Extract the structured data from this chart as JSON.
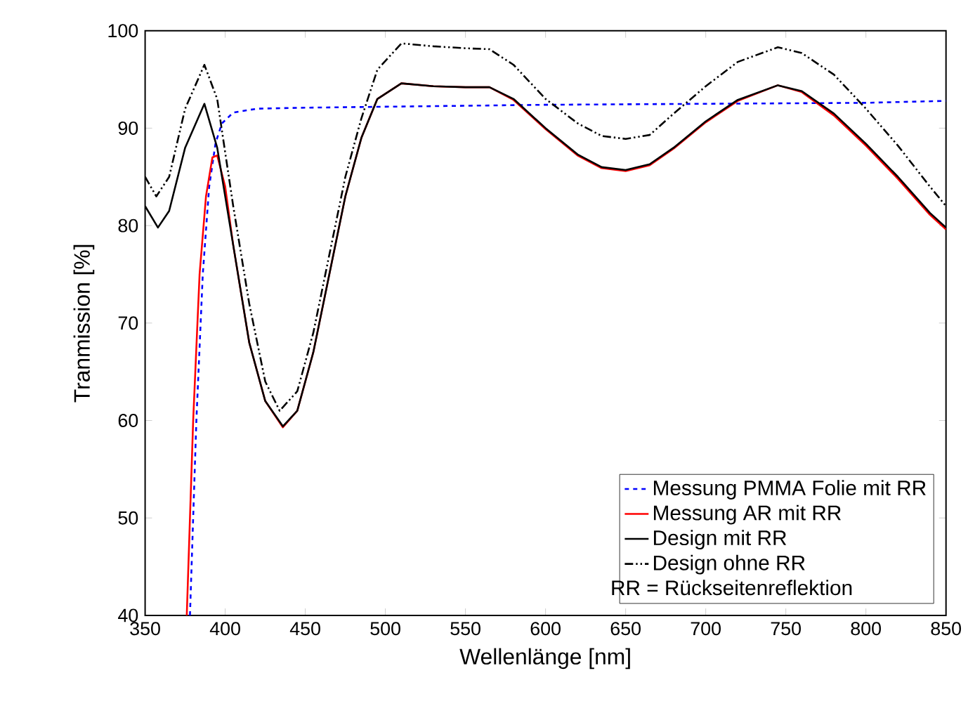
{
  "chart_data": {
    "type": "line",
    "xlabel": "Wellenlänge [nm]",
    "ylabel": "Tranmission [%]",
    "xlim": [
      350,
      850
    ],
    "ylim": [
      40,
      100
    ],
    "xticks": [
      350,
      400,
      450,
      500,
      550,
      600,
      650,
      700,
      750,
      800,
      850
    ],
    "yticks": [
      40,
      50,
      60,
      70,
      80,
      90,
      100
    ],
    "grid": false,
    "legend": "bottom right",
    "marker": "none",
    "annotations": [
      "RR = Rückseitenreflektion"
    ],
    "series": [
      {
        "name": "Messung PMMA Folie mit RR",
        "color": "#0000ff",
        "line_style": "dashed",
        "x": [
          378,
          382,
          386,
          390,
          394,
          398,
          405,
          420,
          450,
          500,
          550,
          600,
          700,
          800,
          850
        ],
        "values": [
          40,
          60,
          75,
          84,
          88.5,
          90.5,
          91.6,
          92.0,
          92.1,
          92.2,
          92.3,
          92.4,
          92.5,
          92.6,
          92.8
        ]
      },
      {
        "name": "Messung AR mit RR",
        "color": "#ff0000",
        "line_style": "solid",
        "x": [
          376,
          380,
          384,
          388,
          392,
          395,
          400,
          405,
          415,
          425,
          436,
          445,
          455,
          465,
          475,
          485,
          495,
          510,
          530,
          550,
          565,
          580,
          600,
          620,
          635,
          650,
          665,
          680,
          700,
          720,
          745,
          760,
          780,
          800,
          820,
          840,
          850
        ],
        "values": [
          40,
          60,
          75,
          83,
          87,
          87.2,
          84,
          78,
          68,
          62,
          59.3,
          61,
          67,
          75,
          83,
          89,
          93,
          94.6,
          94.3,
          94.2,
          94.2,
          92.9,
          89.9,
          87.2,
          85.9,
          85.6,
          86.2,
          87.9,
          90.6,
          92.8,
          94.4,
          93.7,
          91.3,
          88.2,
          84.8,
          81.1,
          79.6
        ]
      },
      {
        "name": "Design mit RR",
        "color": "#000000",
        "line_style": "solid",
        "x": [
          350,
          358,
          365,
          375,
          387,
          395,
          405,
          415,
          425,
          436,
          445,
          455,
          465,
          475,
          485,
          495,
          510,
          530,
          550,
          565,
          580,
          600,
          620,
          635,
          650,
          665,
          680,
          700,
          720,
          745,
          760,
          780,
          800,
          820,
          840,
          850
        ],
        "values": [
          82.0,
          79.8,
          81.5,
          88,
          92.5,
          88,
          78,
          68,
          62,
          59.4,
          61,
          67,
          75,
          83,
          89,
          93,
          94.6,
          94.3,
          94.2,
          94.2,
          93,
          90,
          87.3,
          86,
          85.7,
          86.3,
          88,
          90.7,
          92.9,
          94.4,
          93.8,
          91.5,
          88.4,
          85,
          81.3,
          79.8
        ]
      },
      {
        "name": "Design ohne RR",
        "color": "#000000",
        "line_style": "dashdot",
        "x": [
          350,
          357,
          365,
          375,
          387,
          395,
          405,
          415,
          425,
          434,
          445,
          455,
          465,
          475,
          485,
          495,
          510,
          530,
          550,
          565,
          580,
          600,
          620,
          635,
          650,
          665,
          680,
          700,
          720,
          745,
          760,
          780,
          800,
          820,
          840,
          850
        ],
        "values": [
          85,
          83,
          85,
          92,
          96.5,
          93,
          82,
          72,
          64,
          61,
          63,
          69,
          77,
          85,
          91,
          96,
          98.7,
          98.4,
          98.2,
          98.1,
          96.5,
          93,
          90.5,
          89.2,
          88.9,
          89.3,
          91.5,
          94.3,
          96.8,
          98.3,
          97.7,
          95.5,
          92,
          88.2,
          84,
          82
        ]
      }
    ]
  }
}
